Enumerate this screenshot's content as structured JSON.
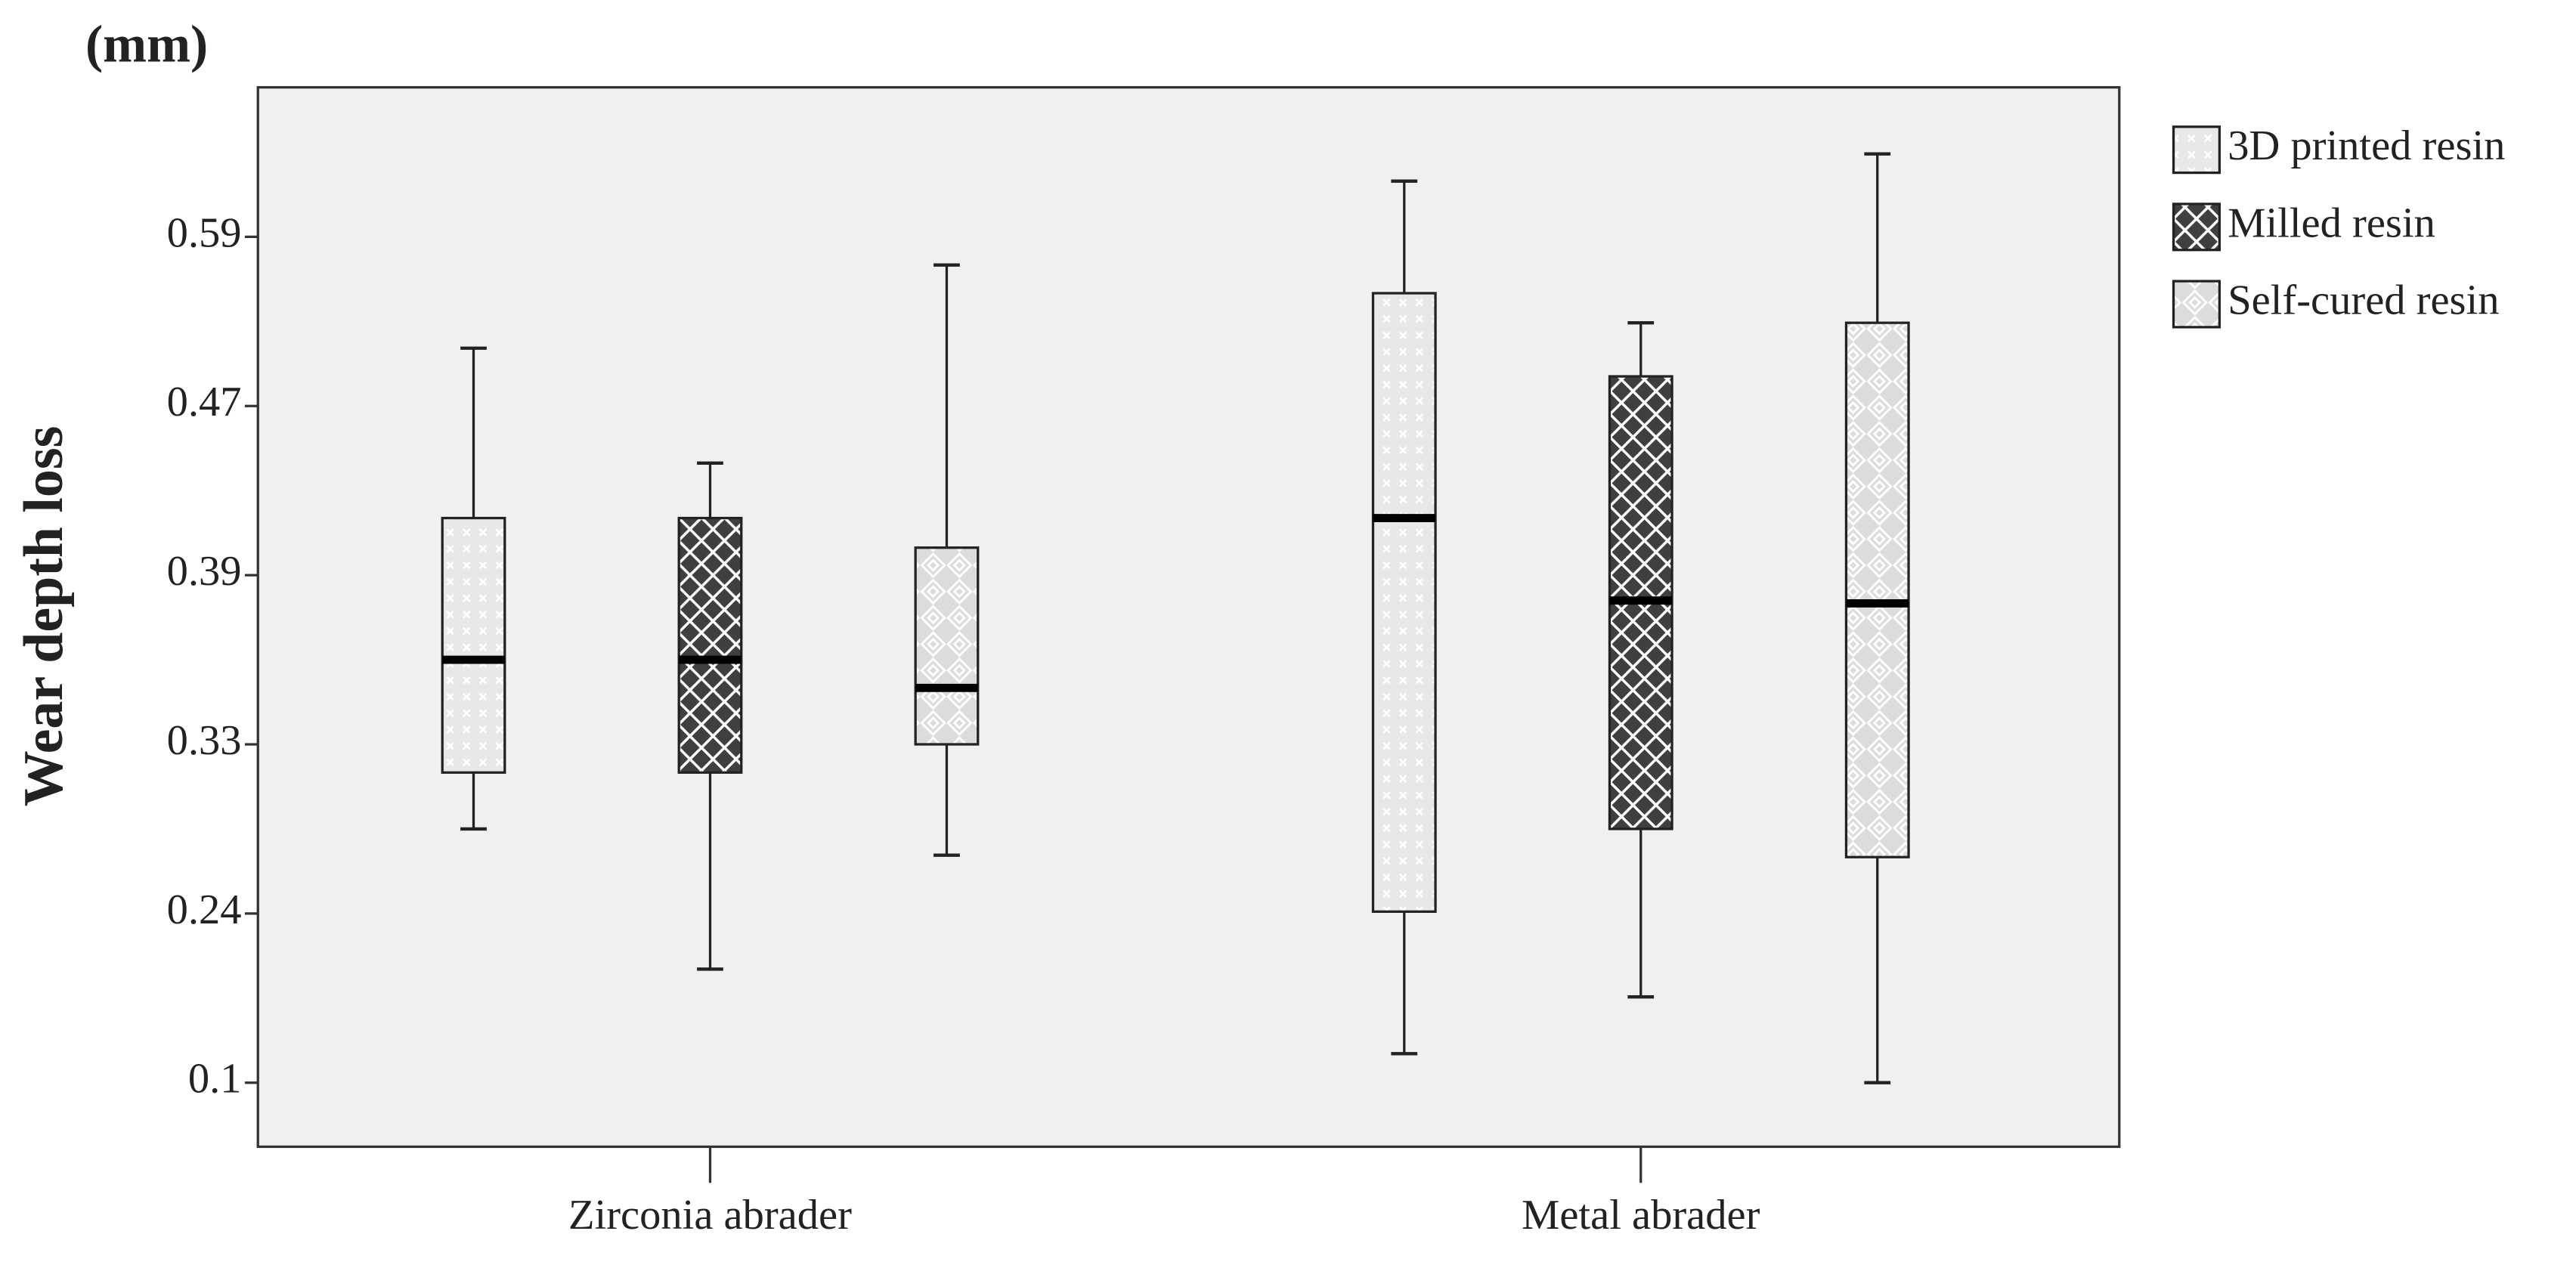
{
  "chart_data": {
    "type": "boxplot",
    "unit_label": "(mm)",
    "y_label": "Wear depth loss",
    "categories": [
      "Zirconia abrader",
      "Metal abrader"
    ],
    "ylim": [
      0.05,
      0.7
    ],
    "yticks": [
      0.1,
      0.24,
      0.33,
      0.39,
      0.47,
      0.59
    ],
    "series": [
      {
        "name": "3D printed resin",
        "color": "#e4e4e4",
        "values": [
          {
            "min": 0.285,
            "q1": 0.315,
            "median": 0.36,
            "q3": 0.417,
            "max": 0.511
          },
          {
            "min": 0.124,
            "q1": 0.241,
            "median": 0.417,
            "q3": 0.55,
            "max": 0.631
          }
        ]
      },
      {
        "name": "Milled resin",
        "color": "#3f3f3f",
        "values": [
          {
            "min": 0.194,
            "q1": 0.315,
            "median": 0.36,
            "q3": 0.417,
            "max": 0.443
          },
          {
            "min": 0.171,
            "q1": 0.285,
            "median": 0.381,
            "q3": 0.491,
            "max": 0.529
          }
        ]
      },
      {
        "name": "Self-cured resin",
        "color": "#d8d8d8",
        "values": [
          {
            "min": 0.271,
            "q1": 0.33,
            "median": 0.35,
            "q3": 0.403,
            "max": 0.57
          },
          {
            "min": 0.1,
            "q1": 0.27,
            "median": 0.38,
            "q3": 0.529,
            "max": 0.651
          }
        ]
      }
    ]
  }
}
